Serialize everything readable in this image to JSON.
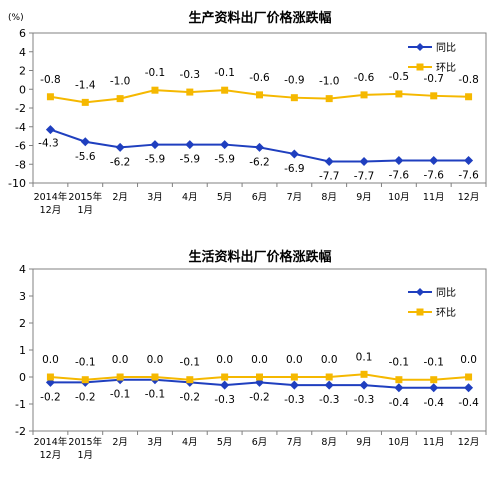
{
  "chart_data": [
    {
      "type": "line",
      "title": "生产资料出厂价格涨跌幅",
      "unit": "(%)",
      "categories": [
        [
          "2014年",
          "12月"
        ],
        [
          "2015年",
          "1月"
        ],
        [
          "2月"
        ],
        [
          "3月"
        ],
        [
          "4月"
        ],
        [
          "5月"
        ],
        [
          "6月"
        ],
        [
          "7月"
        ],
        [
          "8月"
        ],
        [
          "9月"
        ],
        [
          "10月"
        ],
        [
          "11月"
        ],
        [
          "12月"
        ]
      ],
      "ylim": [
        -10,
        6
      ],
      "yticks": [
        6,
        4,
        2,
        0,
        -2,
        -4,
        -6,
        -8,
        -10
      ],
      "legend_position": "top-right",
      "series": [
        {
          "name": "同比",
          "color": "#1f3fbf",
          "marker": "diamond",
          "values": [
            -4.3,
            -5.6,
            -6.2,
            -5.9,
            -5.9,
            -5.9,
            -6.2,
            -6.9,
            -7.7,
            -7.7,
            -7.6,
            -7.6,
            -7.6
          ],
          "labels": [
            "-4.3",
            "-5.6",
            "-6.2",
            "-5.9",
            "-5.9",
            "-5.9",
            "-6.2",
            "-6.9",
            "-7.7",
            "-7.7",
            "-7.6",
            "-7.6",
            "-7.6"
          ]
        },
        {
          "name": "环比",
          "color": "#f5b800",
          "marker": "square",
          "values": [
            -0.8,
            -1.4,
            -1.0,
            -0.1,
            -0.3,
            -0.1,
            -0.6,
            -0.9,
            -1.0,
            -0.6,
            -0.5,
            -0.7,
            -0.8
          ],
          "labels": [
            "-0.8",
            "-1.4",
            "-1.0",
            "-0.1",
            "-0.3",
            "-0.1",
            "-0.6",
            "-0.9",
            "-1.0",
            "-0.6",
            "-0.5",
            "-0.7",
            "-0.8"
          ]
        }
      ]
    },
    {
      "type": "line",
      "title": "生活资料出厂价格涨跌幅",
      "unit": "(%)",
      "categories": [
        [
          "2014年",
          "12月"
        ],
        [
          "2015年",
          "1月"
        ],
        [
          "2月"
        ],
        [
          "3月"
        ],
        [
          "4月"
        ],
        [
          "5月"
        ],
        [
          "6月"
        ],
        [
          "7月"
        ],
        [
          "8月"
        ],
        [
          "9月"
        ],
        [
          "10月"
        ],
        [
          "11月"
        ],
        [
          "12月"
        ]
      ],
      "ylim": [
        -2,
        4
      ],
      "yticks": [
        4,
        3,
        2,
        1,
        0,
        -1,
        -2
      ],
      "legend_position": "top-right",
      "series": [
        {
          "name": "同比",
          "color": "#1f3fbf",
          "marker": "diamond",
          "values": [
            -0.2,
            -0.2,
            -0.1,
            -0.1,
            -0.2,
            -0.3,
            -0.2,
            -0.3,
            -0.3,
            -0.3,
            -0.4,
            -0.4,
            -0.4
          ],
          "labels": [
            "-0.2",
            "-0.2",
            "-0.1",
            "-0.1",
            "-0.2",
            "-0.3",
            "-0.2",
            "-0.3",
            "-0.3",
            "-0.3",
            "-0.4",
            "-0.4",
            "-0.4"
          ]
        },
        {
          "name": "环比",
          "color": "#f5b800",
          "marker": "square",
          "values": [
            0.0,
            -0.1,
            0.0,
            0.0,
            -0.1,
            0.0,
            0.0,
            0.0,
            0.0,
            0.1,
            -0.1,
            -0.1,
            0.0
          ],
          "labels": [
            "0.0",
            "-0.1",
            "0.0",
            "0.0",
            "-0.1",
            "0.0",
            "0.0",
            "0.0",
            "0.0",
            "0.1",
            "-0.1",
            "-0.1",
            "0.0"
          ]
        }
      ]
    }
  ]
}
